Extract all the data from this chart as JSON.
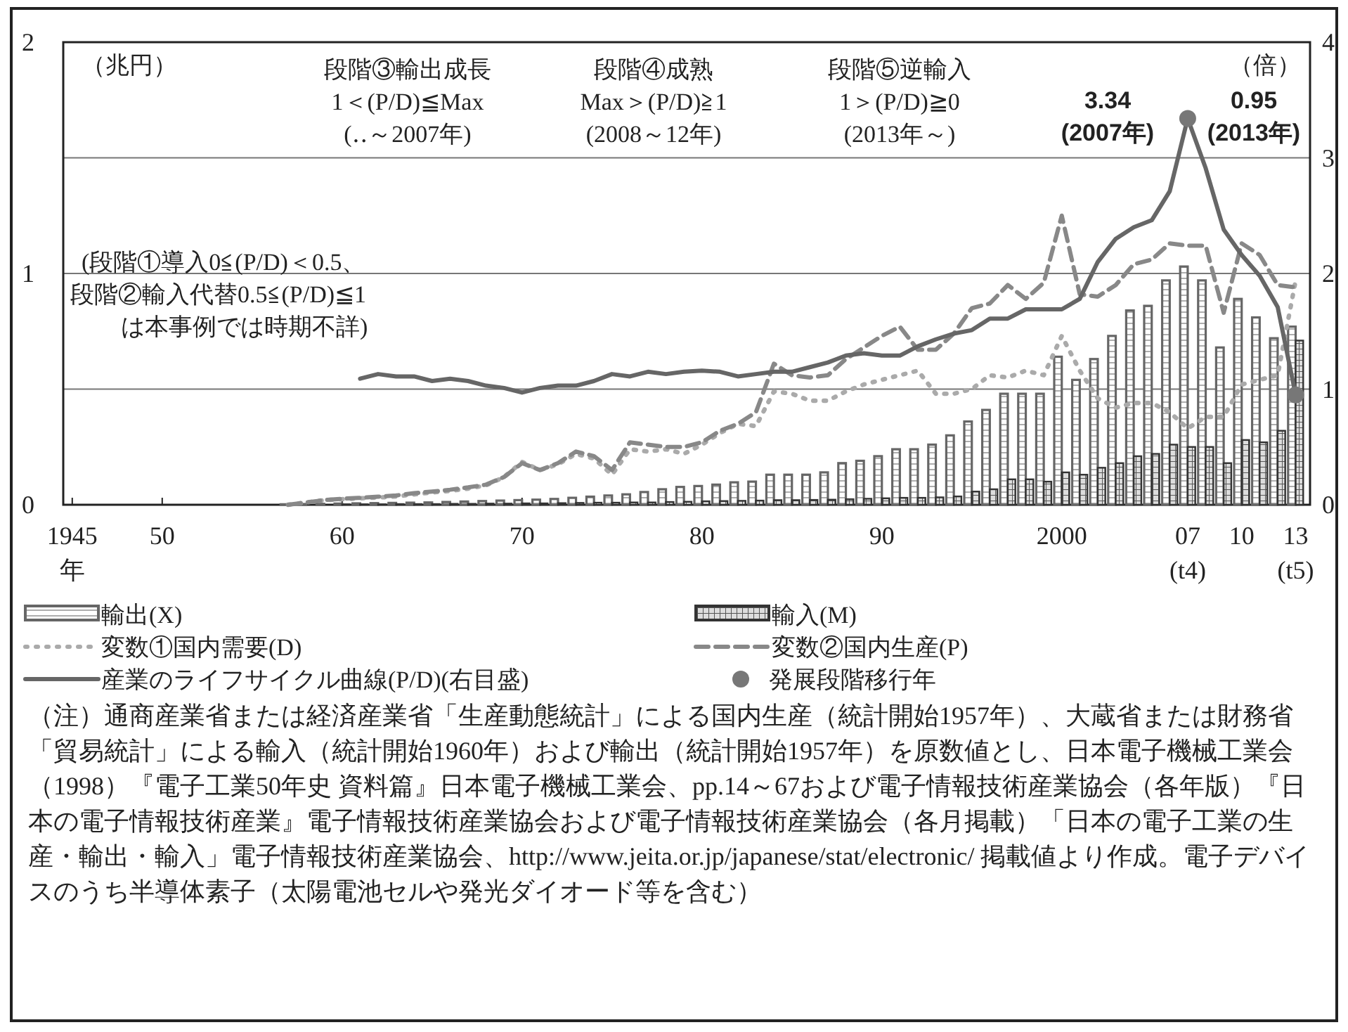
{
  "chart_data": {
    "type": "bar",
    "ylabel": "（兆円）",
    "y2label": "（倍）",
    "x": [
      1957,
      1958,
      1959,
      1960,
      1961,
      1962,
      1963,
      1964,
      1965,
      1966,
      1967,
      1968,
      1969,
      1970,
      1971,
      1972,
      1973,
      1974,
      1975,
      1976,
      1977,
      1978,
      1979,
      1980,
      1981,
      1982,
      1983,
      1984,
      1985,
      1986,
      1987,
      1988,
      1989,
      1990,
      1991,
      1992,
      1993,
      1994,
      1995,
      1996,
      1997,
      1998,
      1999,
      2000,
      2001,
      2002,
      2003,
      2004,
      2005,
      2006,
      2007,
      2008,
      2009,
      2010,
      2011,
      2012,
      2013
    ],
    "series": [
      {
        "name": "輸出(X)",
        "color": "#666666",
        "values": [
          0.002,
          0.003,
          0.004,
          0.005,
          0.006,
          0.007,
          0.008,
          0.009,
          0.01,
          0.012,
          0.014,
          0.016,
          0.018,
          0.02,
          0.022,
          0.025,
          0.03,
          0.035,
          0.04,
          0.045,
          0.055,
          0.067,
          0.077,
          0.081,
          0.087,
          0.097,
          0.1,
          0.13,
          0.13,
          0.13,
          0.14,
          0.18,
          0.19,
          0.21,
          0.24,
          0.24,
          0.26,
          0.3,
          0.36,
          0.41,
          0.48,
          0.48,
          0.48,
          0.64,
          0.54,
          0.63,
          0.73,
          0.84,
          0.86,
          0.97,
          1.03,
          0.97,
          0.68,
          0.89,
          0.81,
          0.72,
          0.77
        ]
      },
      {
        "name": "輸入(M)",
        "color": "#333333",
        "values": [
          null,
          null,
          null,
          0.002,
          0.002,
          0.002,
          0.003,
          0.003,
          0.003,
          0.004,
          0.004,
          0.005,
          0.005,
          0.006,
          0.006,
          0.007,
          0.008,
          0.009,
          0.009,
          0.01,
          0.01,
          0.012,
          0.013,
          0.015,
          0.016,
          0.017,
          0.018,
          0.02,
          0.02,
          0.021,
          0.022,
          0.024,
          0.026,
          0.028,
          0.03,
          0.03,
          0.032,
          0.036,
          0.057,
          0.067,
          0.11,
          0.11,
          0.1,
          0.14,
          0.13,
          0.16,
          0.18,
          0.21,
          0.22,
          0.26,
          0.25,
          0.25,
          0.18,
          0.28,
          0.27,
          0.32,
          0.71
        ]
      },
      {
        "name": "変数①国内需要(D)",
        "type": "line",
        "line_style": "dotted",
        "color": "#aaaaaa",
        "values": [
          0.0,
          0.01,
          0.02,
          0.024,
          0.028,
          0.031,
          0.036,
          0.045,
          0.053,
          0.06,
          0.07,
          0.084,
          0.12,
          0.185,
          0.15,
          0.175,
          0.22,
          0.2,
          0.13,
          0.24,
          0.23,
          0.24,
          0.22,
          0.26,
          0.31,
          0.35,
          0.34,
          0.49,
          0.48,
          0.45,
          0.45,
          0.49,
          0.52,
          0.54,
          0.56,
          0.58,
          0.48,
          0.48,
          0.5,
          0.56,
          0.55,
          0.58,
          0.56,
          0.73,
          0.58,
          0.46,
          0.42,
          0.44,
          0.44,
          0.4,
          0.33,
          0.38,
          0.38,
          0.52,
          0.54,
          0.56,
          0.97
        ]
      },
      {
        "name": "変数②国内生産(P)",
        "type": "line",
        "line_style": "dashed",
        "color": "#888888",
        "values": [
          0.0,
          0.01,
          0.02,
          0.026,
          0.03,
          0.035,
          0.04,
          0.05,
          0.057,
          0.065,
          0.075,
          0.087,
          0.12,
          0.18,
          0.15,
          0.18,
          0.23,
          0.21,
          0.15,
          0.27,
          0.26,
          0.25,
          0.25,
          0.27,
          0.32,
          0.35,
          0.4,
          0.61,
          0.56,
          0.55,
          0.56,
          0.63,
          0.68,
          0.73,
          0.77,
          0.67,
          0.67,
          0.74,
          0.85,
          0.87,
          0.95,
          0.89,
          0.96,
          1.25,
          0.91,
          0.9,
          0.95,
          1.04,
          1.06,
          1.13,
          1.12,
          1.12,
          0.83,
          1.13,
          1.08,
          0.95,
          0.94
        ]
      },
      {
        "name": "産業のライフサイクル曲線(P/D)(右目盛)",
        "type": "line",
        "line_style": "solid",
        "axis": "y2",
        "color": "#666666",
        "values": [
          null,
          null,
          null,
          null,
          1.09,
          1.13,
          1.11,
          1.11,
          1.07,
          1.09,
          1.07,
          1.03,
          1.01,
          0.97,
          1.01,
          1.03,
          1.03,
          1.07,
          1.13,
          1.11,
          1.15,
          1.13,
          1.15,
          1.16,
          1.15,
          1.11,
          1.13,
          1.15,
          1.15,
          1.19,
          1.23,
          1.29,
          1.31,
          1.29,
          1.29,
          1.37,
          1.43,
          1.48,
          1.51,
          1.61,
          1.61,
          1.69,
          1.69,
          1.69,
          1.78,
          2.1,
          2.3,
          2.4,
          2.46,
          2.71,
          3.34,
          2.91,
          2.38,
          2.16,
          1.98,
          1.71,
          0.95
        ]
      },
      {
        "name": "発展段階移行年",
        "type": "scatter",
        "marker": "circle",
        "axis": "y2",
        "color": "#777777",
        "x": [
          2007,
          2013
        ],
        "values": [
          3.34,
          0.95
        ]
      }
    ],
    "xlim": [
      1944.5,
      2013.8
    ],
    "xticks": [
      {
        "value": 1945,
        "label": "1945\n年"
      },
      {
        "value": 1950,
        "label": "50"
      },
      {
        "value": 1960,
        "label": "60"
      },
      {
        "value": 1970,
        "label": "70"
      },
      {
        "value": 1980,
        "label": "80"
      },
      {
        "value": 1990,
        "label": "90"
      },
      2000,
      {
        "value": 2007,
        "label": "07\n(t4)"
      },
      {
        "value": 2010,
        "label": "10"
      },
      {
        "value": 2013,
        "label": "13\n(t5)"
      }
    ],
    "ylim": [
      0,
      2
    ],
    "yticks": [
      0,
      1,
      2
    ],
    "y2lim": [
      0,
      4
    ],
    "y2ticks": [
      0,
      1,
      2,
      3,
      4
    ],
    "grid": true,
    "legend": "bottom",
    "annotations": [
      "段階③輸出成長\n1＜(P/D)≦Max\n(‥～2007年)",
      "段階④成熟\nMax＞(P/D)≧1\n(2008～12年)",
      "段階⑤逆輸入\n1＞(P/D)≧0\n(2013年～)",
      "(段階①導入0≦(P/D)＜0.5、",
      "段階②輸入代替0.5≦(P/D)≦1",
      "は本事例では時期不詳)",
      "3.34\n(2007年)",
      "0.95\n(2013年)",
      "（注）通商産業省または経済産業省「生産動態統計」による国内生産（統計開始1957年）、大蔵省または財務省「貿易統計」による輸入（統計開始1960年）および輸出（統計開始1957年）を原数値とし、日本電子機械工業会（1998）『電子工業50年史 資料篇』日本電子機械工業会、pp.14～67および電子情報技術産業協会（各年版）『日本の電子情報技術産業』電子情報技術産業協会および電子情報技術産業協会（各月掲載）「日本の電子工業の生産・輸出・輸入」電子情報技術産業協会、http://www.jeita.or.jp/japanese/stat/electronic/ 掲載値より作成。電子デバイスのうち半導体素子（太陽電池セルや発光ダイオード等を含む）"
    ]
  }
}
